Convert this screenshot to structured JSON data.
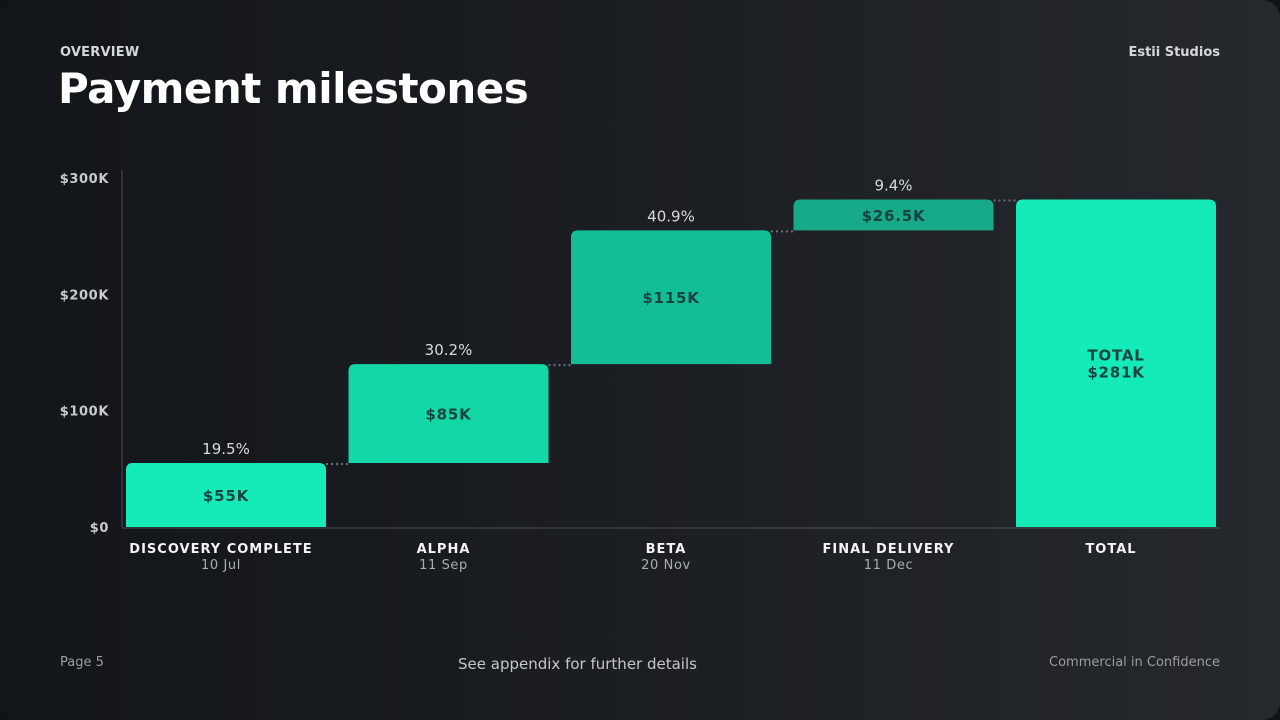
{
  "header": {
    "eyebrow": "OVERVIEW",
    "title": "Payment milestones",
    "brand": "Estii Studios"
  },
  "footer": {
    "page": "Page 5",
    "note": "See appendix for further details",
    "confidentiality": "Commercial in Confidence"
  },
  "colors": {
    "bar_bright": "#14ebb8",
    "bar_mid": "#14d7a8",
    "bar_dark": "#13be97",
    "bar_darker": "#16aa88",
    "label_text": "#16423f"
  },
  "chart_data": {
    "type": "bar",
    "subtype": "waterfall",
    "title": "Payment milestones",
    "ylim": [
      0,
      300000
    ],
    "yticks": [
      0,
      100000,
      200000,
      300000
    ],
    "ytick_labels": [
      "$0",
      "$100K",
      "$200K",
      "$300K"
    ],
    "grid": false,
    "legend": "none",
    "categories": [
      "DISCOVERY COMPLETE",
      "ALPHA",
      "BETA",
      "FINAL DELIVERY",
      "TOTAL"
    ],
    "dates": [
      "10 Jul",
      "11 Sep",
      "20 Nov",
      "11 Dec",
      ""
    ],
    "values": [
      55000,
      85000,
      115000,
      26500,
      281500
    ],
    "value_labels": [
      "$55K",
      "$85K",
      "$115K",
      "$26.5K",
      "$281K"
    ],
    "percent_labels": [
      "19.5%",
      "30.2%",
      "40.9%",
      "9.4%",
      ""
    ],
    "total_label": "TOTAL",
    "is_total": [
      false,
      false,
      false,
      false,
      true
    ]
  }
}
